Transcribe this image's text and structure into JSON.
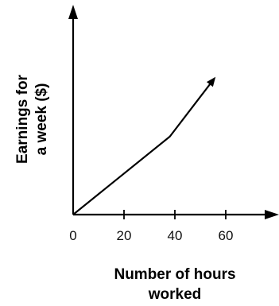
{
  "chart_data": {
    "type": "line",
    "title": "",
    "xlabel_lines": [
      "Number of hours",
      "worked"
    ],
    "ylabel_lines": [
      "Earnings for",
      "a week ($)"
    ],
    "x_ticks": [
      0,
      20,
      40,
      60
    ],
    "x_tick_labels": [
      "0",
      "20",
      "40",
      "60"
    ],
    "y_ticks_labeled": false,
    "grid": false,
    "legend": "none",
    "axes_arrows": true,
    "series": [
      {
        "points": [
          {
            "x": 0,
            "y": 0
          },
          {
            "x": 38,
            "y": 3
          },
          {
            "x": 56,
            "y": 5.3
          }
        ],
        "end_arrow": true
      }
    ]
  }
}
